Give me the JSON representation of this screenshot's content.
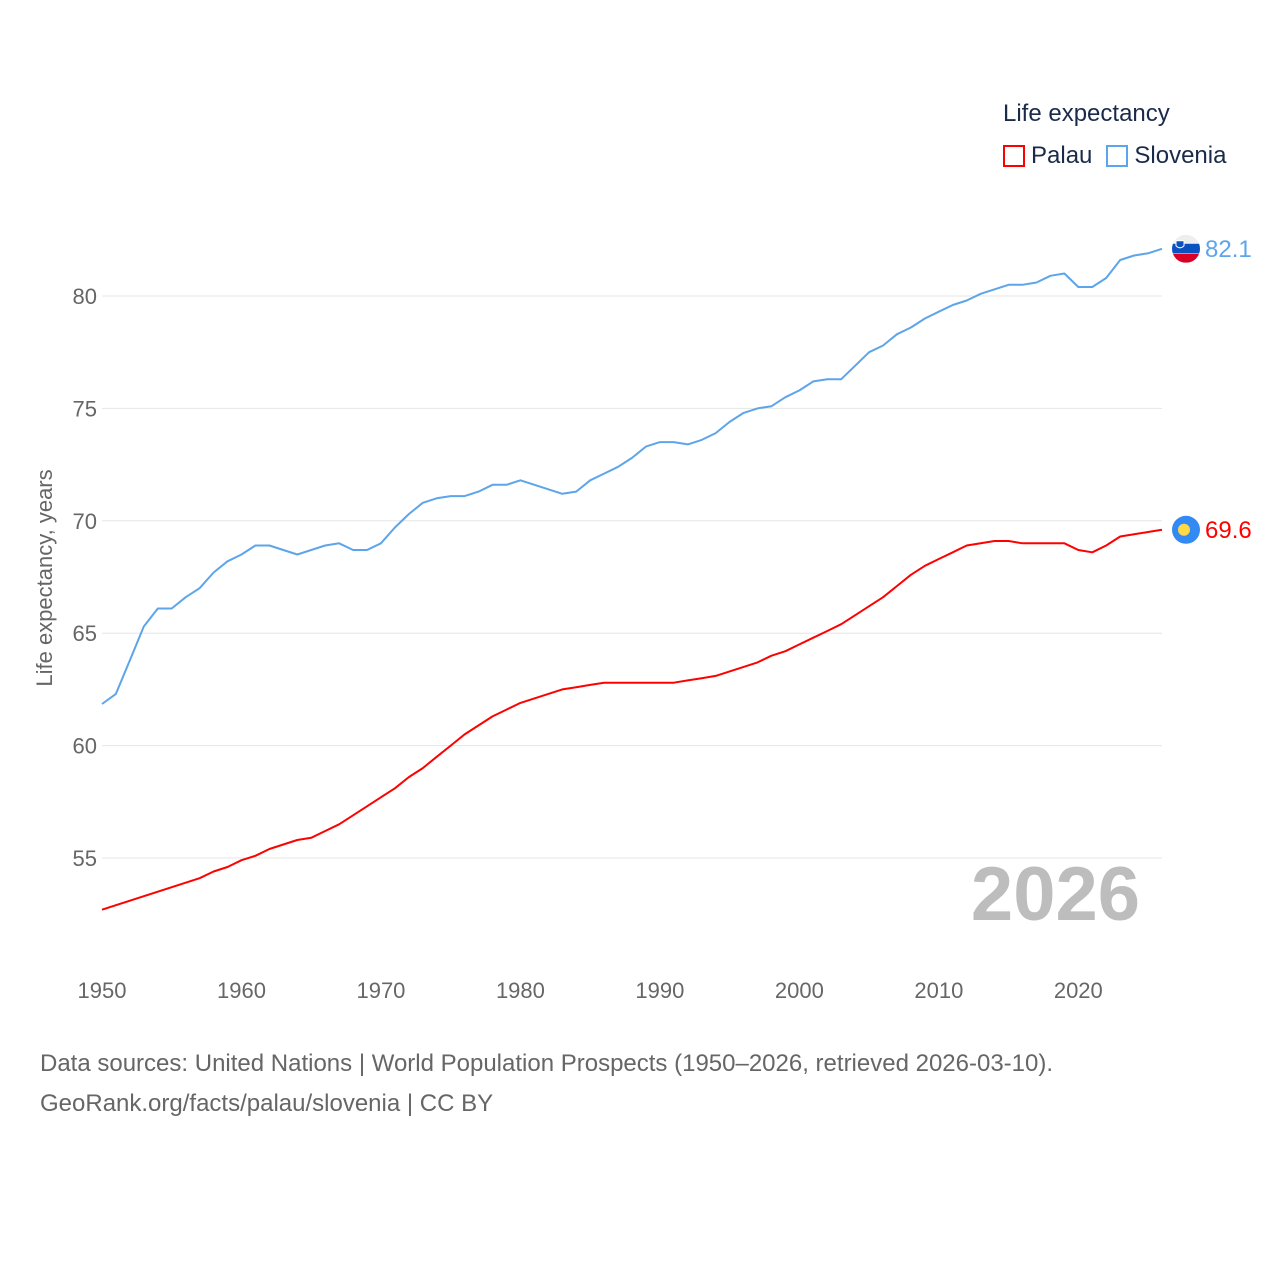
{
  "chart_data": {
    "type": "line",
    "title": "Life expectancy",
    "xlabel": "",
    "ylabel": "Life expectancy, years",
    "xlim": [
      1950,
      2026
    ],
    "ylim": [
      51.5,
      83
    ],
    "x_ticks": [
      1950,
      1960,
      1970,
      1980,
      1990,
      2000,
      2010,
      2020
    ],
    "y_ticks": [
      55,
      60,
      65,
      70,
      75,
      80
    ],
    "grid": true,
    "legend_position": "top-right",
    "year_label": "2026",
    "x": [
      1950,
      1951,
      1952,
      1953,
      1954,
      1955,
      1956,
      1957,
      1958,
      1959,
      1960,
      1961,
      1962,
      1963,
      1964,
      1965,
      1966,
      1967,
      1968,
      1969,
      1970,
      1971,
      1972,
      1973,
      1974,
      1975,
      1976,
      1977,
      1978,
      1979,
      1980,
      1981,
      1982,
      1983,
      1984,
      1985,
      1986,
      1987,
      1988,
      1989,
      1990,
      1991,
      1992,
      1993,
      1994,
      1995,
      1996,
      1997,
      1998,
      1999,
      2000,
      2001,
      2002,
      2003,
      2004,
      2005,
      2006,
      2007,
      2008,
      2009,
      2010,
      2011,
      2012,
      2013,
      2014,
      2015,
      2016,
      2017,
      2018,
      2019,
      2020,
      2021,
      2022,
      2023,
      2024,
      2025,
      2026
    ],
    "series": [
      {
        "name": "Palau",
        "color": "#ff0000",
        "end_label": "69.6",
        "values": [
          52.7,
          52.9,
          53.1,
          53.3,
          53.5,
          53.7,
          53.9,
          54.1,
          54.4,
          54.6,
          54.9,
          55.1,
          55.4,
          55.6,
          55.8,
          55.9,
          56.2,
          56.5,
          56.9,
          57.3,
          57.7,
          58.1,
          58.6,
          59.0,
          59.5,
          60.0,
          60.5,
          60.9,
          61.3,
          61.6,
          61.9,
          62.1,
          62.3,
          62.5,
          62.6,
          62.7,
          62.8,
          62.8,
          62.8,
          62.8,
          62.8,
          62.8,
          62.9,
          63.0,
          63.1,
          63.3,
          63.5,
          63.7,
          64.0,
          64.2,
          64.5,
          64.8,
          65.1,
          65.4,
          65.8,
          66.2,
          66.6,
          67.1,
          67.6,
          68.0,
          68.3,
          68.6,
          68.9,
          69.0,
          69.1,
          69.1,
          69.0,
          69.0,
          69.0,
          69.0,
          68.7,
          68.6,
          68.9,
          69.3,
          69.4,
          69.5,
          69.6
        ]
      },
      {
        "name": "Slovenia",
        "color": "#5da5ea",
        "end_label": "82.1",
        "values": [
          61.85,
          62.3,
          63.8,
          65.3,
          66.1,
          66.1,
          66.6,
          67.0,
          67.7,
          68.2,
          68.5,
          68.9,
          68.9,
          68.7,
          68.5,
          68.7,
          68.9,
          69.0,
          68.7,
          68.7,
          69.0,
          69.7,
          70.3,
          70.8,
          71.0,
          71.1,
          71.1,
          71.3,
          71.6,
          71.6,
          71.8,
          71.6,
          71.4,
          71.2,
          71.3,
          71.8,
          72.1,
          72.4,
          72.8,
          73.3,
          73.5,
          73.5,
          73.4,
          73.6,
          73.9,
          74.4,
          74.8,
          75.0,
          75.1,
          75.5,
          75.8,
          76.2,
          76.3,
          76.3,
          76.9,
          77.5,
          77.8,
          78.3,
          78.6,
          79.0,
          79.3,
          79.6,
          79.8,
          80.1,
          80.3,
          80.5,
          80.5,
          80.6,
          80.9,
          81.0,
          80.4,
          80.4,
          80.8,
          81.6,
          81.8,
          81.9,
          82.1
        ]
      }
    ]
  },
  "legend": {
    "title": "Life expectancy",
    "items": [
      "Palau",
      "Slovenia"
    ]
  },
  "footer": {
    "line1": "Data sources: United Nations | World Population Prospects (1950–2026, retrieved 2026-03-10).",
    "line2": "GeoRank.org/facts/palau/slovenia | CC BY"
  }
}
